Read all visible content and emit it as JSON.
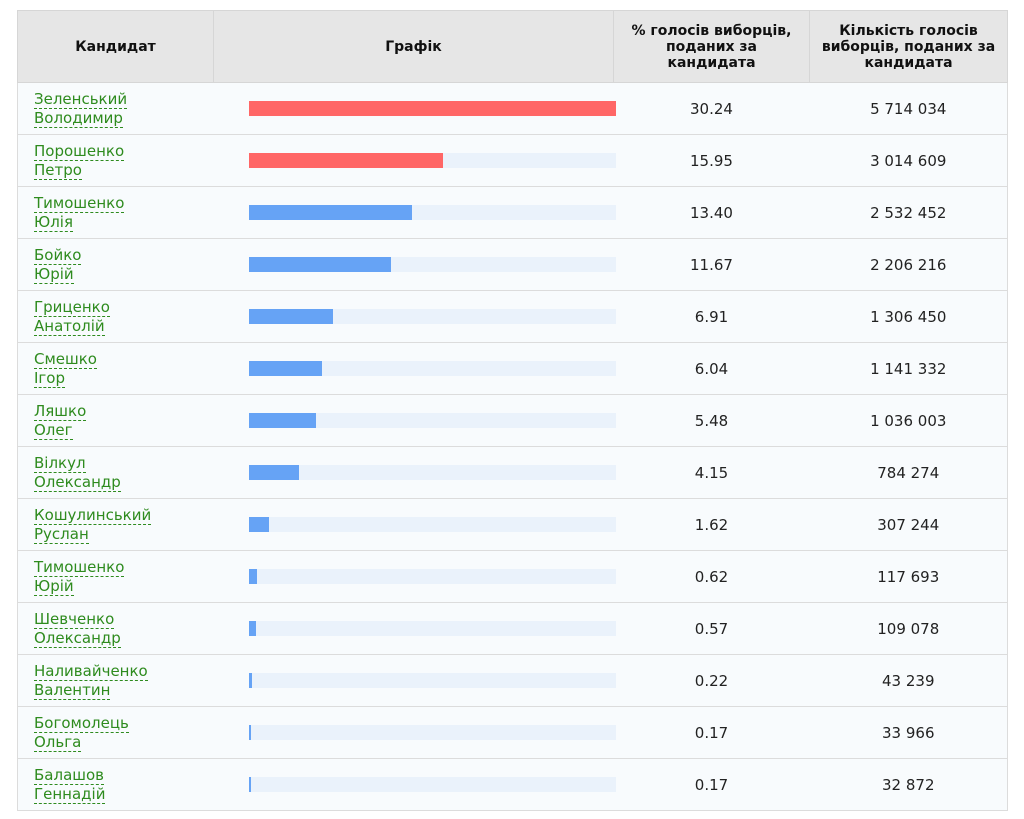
{
  "headers": {
    "candidate": "Кандидат",
    "chart": "Графік",
    "percent": "% голосів виборців, поданих за кандидата",
    "votes": "Кількість голосів виборців, поданих за кандидата"
  },
  "colors": {
    "leader_bar": "#ff6666",
    "other_bar": "#66a3f5",
    "track": "#eaf2fb",
    "link": "#2e8b1e"
  },
  "max_percent": 30.24,
  "rows": [
    {
      "surname": "Зеленський",
      "given": "Володимир",
      "percent": "30.24",
      "pct_value": 30.24,
      "votes": "5 714 034",
      "leader": true
    },
    {
      "surname": "Порошенко",
      "given": "Петро",
      "percent": "15.95",
      "pct_value": 15.95,
      "votes": "3 014 609",
      "leader": true
    },
    {
      "surname": "Тимошенко",
      "given": "Юлія",
      "percent": "13.40",
      "pct_value": 13.4,
      "votes": "2 532 452",
      "leader": false
    },
    {
      "surname": "Бойко",
      "given": "Юрій",
      "percent": "11.67",
      "pct_value": 11.67,
      "votes": "2 206 216",
      "leader": false
    },
    {
      "surname": "Гриценко",
      "given": "Анатолій",
      "percent": "6.91",
      "pct_value": 6.91,
      "votes": "1 306 450",
      "leader": false
    },
    {
      "surname": "Смешко",
      "given": "Ігор",
      "percent": "6.04",
      "pct_value": 6.04,
      "votes": "1 141 332",
      "leader": false
    },
    {
      "surname": "Ляшко",
      "given": "Олег",
      "percent": "5.48",
      "pct_value": 5.48,
      "votes": "1 036 003",
      "leader": false
    },
    {
      "surname": "Вілкул",
      "given": "Олександр",
      "percent": "4.15",
      "pct_value": 4.15,
      "votes": "784 274",
      "leader": false
    },
    {
      "surname": "Кошулинський",
      "given": "Руслан",
      "percent": "1.62",
      "pct_value": 1.62,
      "votes": "307 244",
      "leader": false
    },
    {
      "surname": "Тимошенко",
      "given": "Юрій",
      "percent": "0.62",
      "pct_value": 0.62,
      "votes": "117 693",
      "leader": false
    },
    {
      "surname": "Шевченко",
      "given": "Олександр",
      "percent": "0.57",
      "pct_value": 0.57,
      "votes": "109 078",
      "leader": false
    },
    {
      "surname": "Наливайченко",
      "given": "Валентин",
      "percent": "0.22",
      "pct_value": 0.22,
      "votes": "43 239",
      "leader": false
    },
    {
      "surname": "Богомолець",
      "given": "Ольга",
      "percent": "0.17",
      "pct_value": 0.17,
      "votes": "33 966",
      "leader": false
    },
    {
      "surname": "Балашов",
      "given": "Геннадій",
      "percent": "0.17",
      "pct_value": 0.17,
      "votes": "32 872",
      "leader": false
    }
  ]
}
